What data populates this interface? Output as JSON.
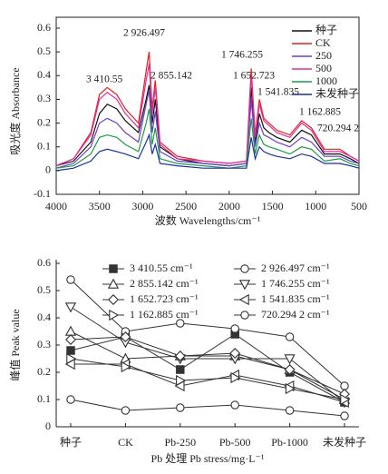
{
  "chart_data": [
    {
      "type": "line",
      "x_label": "波数 Wavelengths/cm⁻¹",
      "y_label": "吸光度 Absorbance",
      "x": [
        4000,
        3800,
        3600,
        3500,
        3410,
        3300,
        3200,
        3050,
        2960,
        2926,
        2890,
        2855,
        2800,
        2600,
        2300,
        2000,
        1800,
        1746,
        1700,
        1652,
        1600,
        1541,
        1450,
        1300,
        1162,
        1050,
        900,
        720,
        600,
        500
      ],
      "xlim": [
        4000,
        500
      ],
      "xticks": [
        4000,
        3500,
        3000,
        2500,
        2000,
        1500,
        1000,
        500
      ],
      "ylim": [
        -0.1,
        0.6
      ],
      "yticks": [
        -0.1,
        0,
        0.1,
        0.2,
        0.3,
        0.4,
        0.5,
        0.6
      ],
      "legend": "upper right",
      "annotations": [
        "3 410.55",
        "2 926.497",
        "2 855.142",
        "1 746.255",
        "1 652.723",
        "1 541.835",
        "1 162.885",
        "720.294 2"
      ],
      "series": [
        {
          "name": "种子",
          "color": "#111111",
          "values": [
            0.02,
            0.04,
            0.12,
            0.24,
            0.28,
            0.26,
            0.21,
            0.16,
            0.3,
            0.36,
            0.2,
            0.3,
            0.1,
            0.05,
            0.03,
            0.02,
            0.03,
            0.35,
            0.12,
            0.24,
            0.18,
            0.16,
            0.14,
            0.12,
            0.17,
            0.15,
            0.07,
            0.07,
            0.05,
            0.03
          ]
        },
        {
          "name": "CK",
          "color": "#e02020",
          "values": [
            0.02,
            0.05,
            0.16,
            0.32,
            0.35,
            0.32,
            0.26,
            0.2,
            0.42,
            0.5,
            0.26,
            0.38,
            0.12,
            0.06,
            0.04,
            0.03,
            0.04,
            0.43,
            0.15,
            0.3,
            0.22,
            0.2,
            0.17,
            0.15,
            0.21,
            0.18,
            0.09,
            0.09,
            0.06,
            0.04
          ]
        },
        {
          "name": "250",
          "color": "#6a3fc8",
          "values": [
            0.01,
            0.03,
            0.1,
            0.2,
            0.22,
            0.2,
            0.16,
            0.12,
            0.28,
            0.34,
            0.16,
            0.25,
            0.08,
            0.04,
            0.03,
            0.02,
            0.03,
            0.3,
            0.1,
            0.2,
            0.15,
            0.14,
            0.12,
            0.1,
            0.14,
            0.12,
            0.06,
            0.06,
            0.04,
            0.03
          ]
        },
        {
          "name": "500",
          "color": "#e0309a",
          "values": [
            0.02,
            0.05,
            0.15,
            0.3,
            0.33,
            0.3,
            0.24,
            0.18,
            0.38,
            0.45,
            0.24,
            0.35,
            0.11,
            0.05,
            0.04,
            0.03,
            0.04,
            0.4,
            0.14,
            0.28,
            0.21,
            0.19,
            0.16,
            0.14,
            0.2,
            0.17,
            0.08,
            0.08,
            0.06,
            0.04
          ]
        },
        {
          "name": "1000",
          "color": "#1e9a4a",
          "values": [
            0.01,
            0.02,
            0.07,
            0.14,
            0.15,
            0.14,
            0.11,
            0.08,
            0.2,
            0.26,
            0.11,
            0.18,
            0.05,
            0.03,
            0.02,
            0.01,
            0.02,
            0.22,
            0.07,
            0.15,
            0.11,
            0.1,
            0.09,
            0.07,
            0.1,
            0.09,
            0.04,
            0.05,
            0.03,
            0.02
          ]
        },
        {
          "name": "未发种子",
          "color": "#1c2f9c",
          "values": [
            0.0,
            0.01,
            0.04,
            0.08,
            0.09,
            0.08,
            0.07,
            0.05,
            0.12,
            0.15,
            0.07,
            0.11,
            0.03,
            0.02,
            0.01,
            0.01,
            0.01,
            0.14,
            0.05,
            0.1,
            0.08,
            0.07,
            0.06,
            0.05,
            0.07,
            0.06,
            0.03,
            0.03,
            0.02,
            0.01
          ]
        }
      ]
    },
    {
      "type": "line",
      "x_label": "Pb 处理 Pb stress/mg·L⁻¹",
      "y_label": "峰值 Peak value",
      "categories": [
        "种子",
        "CK",
        "Pb-250",
        "Pb-500",
        "Pb-1000",
        "未发种子"
      ],
      "ylim": [
        0,
        0.6
      ],
      "yticks": [
        0,
        0.1,
        0.2,
        0.3,
        0.4,
        0.5,
        0.6
      ],
      "legend": "upper center",
      "series": [
        {
          "name": "3 410.55 cm⁻¹",
          "color": "#333333",
          "marker": "square-filled",
          "values": [
            0.28,
            0.33,
            0.21,
            0.34,
            0.2,
            0.09
          ]
        },
        {
          "name": "2 926.497 cm⁻¹",
          "color": "#333333",
          "marker": "circle-open",
          "values": [
            0.54,
            0.35,
            0.38,
            0.36,
            0.33,
            0.15
          ]
        },
        {
          "name": "2 855.142 cm⁻¹",
          "color": "#333333",
          "marker": "triangle-up-open",
          "values": [
            0.35,
            0.25,
            0.26,
            0.26,
            0.21,
            0.1
          ]
        },
        {
          "name": "1 746.255 cm⁻¹",
          "color": "#333333",
          "marker": "triangle-down-open",
          "values": [
            0.44,
            0.31,
            0.25,
            0.25,
            0.25,
            0.09
          ]
        },
        {
          "name": "1 652.723 cm⁻¹",
          "color": "#333333",
          "marker": "diamond-open",
          "values": [
            0.32,
            0.33,
            0.26,
            0.27,
            0.21,
            0.12
          ]
        },
        {
          "name": "1 541.835 cm⁻¹",
          "color": "#333333",
          "marker": "triangle-left-open",
          "values": [
            0.23,
            0.23,
            0.15,
            0.19,
            0.15,
            0.09
          ]
        },
        {
          "name": "1 162.885 cm⁻¹",
          "color": "#333333",
          "marker": "triangle-right-open",
          "values": [
            0.25,
            0.22,
            0.17,
            0.18,
            0.14,
            0.1
          ]
        },
        {
          "name": "720.294 2 cm⁻¹",
          "color": "#333333",
          "marker": "circle-open",
          "values": [
            0.1,
            0.06,
            0.07,
            0.08,
            0.06,
            0.04
          ]
        }
      ]
    }
  ]
}
